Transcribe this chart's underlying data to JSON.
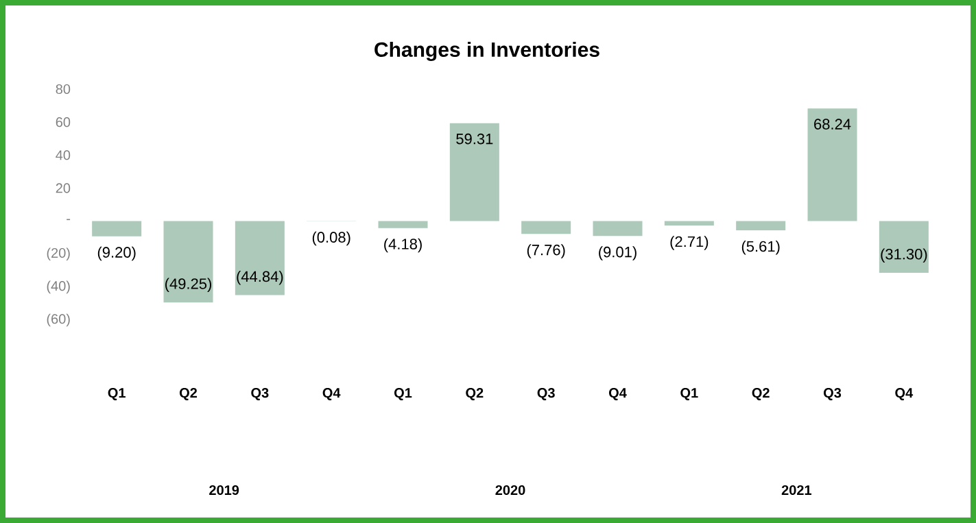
{
  "chart_data": {
    "type": "bar",
    "title": "Changes in Inventories",
    "categories": [
      "Q1",
      "Q2",
      "Q3",
      "Q4",
      "Q1",
      "Q2",
      "Q3",
      "Q4",
      "Q1",
      "Q2",
      "Q3",
      "Q4"
    ],
    "values": [
      -9.2,
      -49.25,
      -44.84,
      -0.08,
      -4.18,
      59.31,
      -7.76,
      -9.01,
      -2.71,
      -5.61,
      68.24,
      -31.3
    ],
    "value_labels": [
      "(9.20)",
      "(49.25)",
      "(44.84)",
      "(0.08)",
      "(4.18)",
      "59.31",
      "(7.76)",
      "(9.01)",
      "(2.71)",
      "(5.61)",
      "68.24",
      "(31.30)"
    ],
    "color": "#acc9b9",
    "ylim": [
      -60,
      80
    ],
    "yticks": [
      80,
      60,
      40,
      20,
      {
        "value": 0,
        "label": "-"
      },
      {
        "value": -20,
        "label": "(20)"
      },
      {
        "value": -40,
        "label": "(40)"
      },
      {
        "value": -60,
        "label": "(60)"
      }
    ],
    "annotations": [
      "2019",
      "2020",
      "2021"
    ],
    "grid": false
  }
}
